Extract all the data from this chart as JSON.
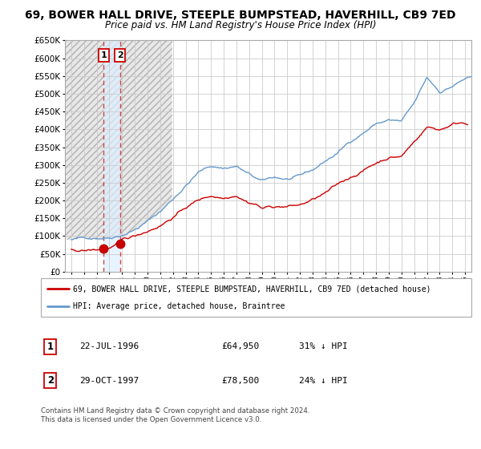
{
  "title": "69, BOWER HALL DRIVE, STEEPLE BUMPSTEAD, HAVERHILL, CB9 7ED",
  "subtitle": "Price paid vs. HM Land Registry's House Price Index (HPI)",
  "ylim": [
    0,
    650000
  ],
  "yticks": [
    0,
    50000,
    100000,
    150000,
    200000,
    250000,
    300000,
    350000,
    400000,
    450000,
    500000,
    550000,
    600000,
    650000
  ],
  "xlim_start": 1993.5,
  "xlim_end": 2025.5,
  "transaction1_x": 1996.55,
  "transaction1_y": 64950,
  "transaction2_x": 1997.83,
  "transaction2_y": 78500,
  "legend_line1": "69, BOWER HALL DRIVE, STEEPLE BUMPSTEAD, HAVERHILL, CB9 7ED (detached house)",
  "legend_line2": "HPI: Average price, detached house, Braintree",
  "table_row1": [
    "1",
    "22-JUL-1996",
    "£64,950",
    "31% ↓ HPI"
  ],
  "table_row2": [
    "2",
    "29-OCT-1997",
    "£78,500",
    "24% ↓ HPI"
  ],
  "footnote": "Contains HM Land Registry data © Crown copyright and database right 2024.\nThis data is licensed under the Open Government Licence v3.0.",
  "red_color": "#cc0000",
  "blue_color": "#6699cc",
  "grid_color": "#cccccc",
  "hatch_color": "#c8c8c8",
  "title_fontsize": 10,
  "subtitle_fontsize": 8.5
}
